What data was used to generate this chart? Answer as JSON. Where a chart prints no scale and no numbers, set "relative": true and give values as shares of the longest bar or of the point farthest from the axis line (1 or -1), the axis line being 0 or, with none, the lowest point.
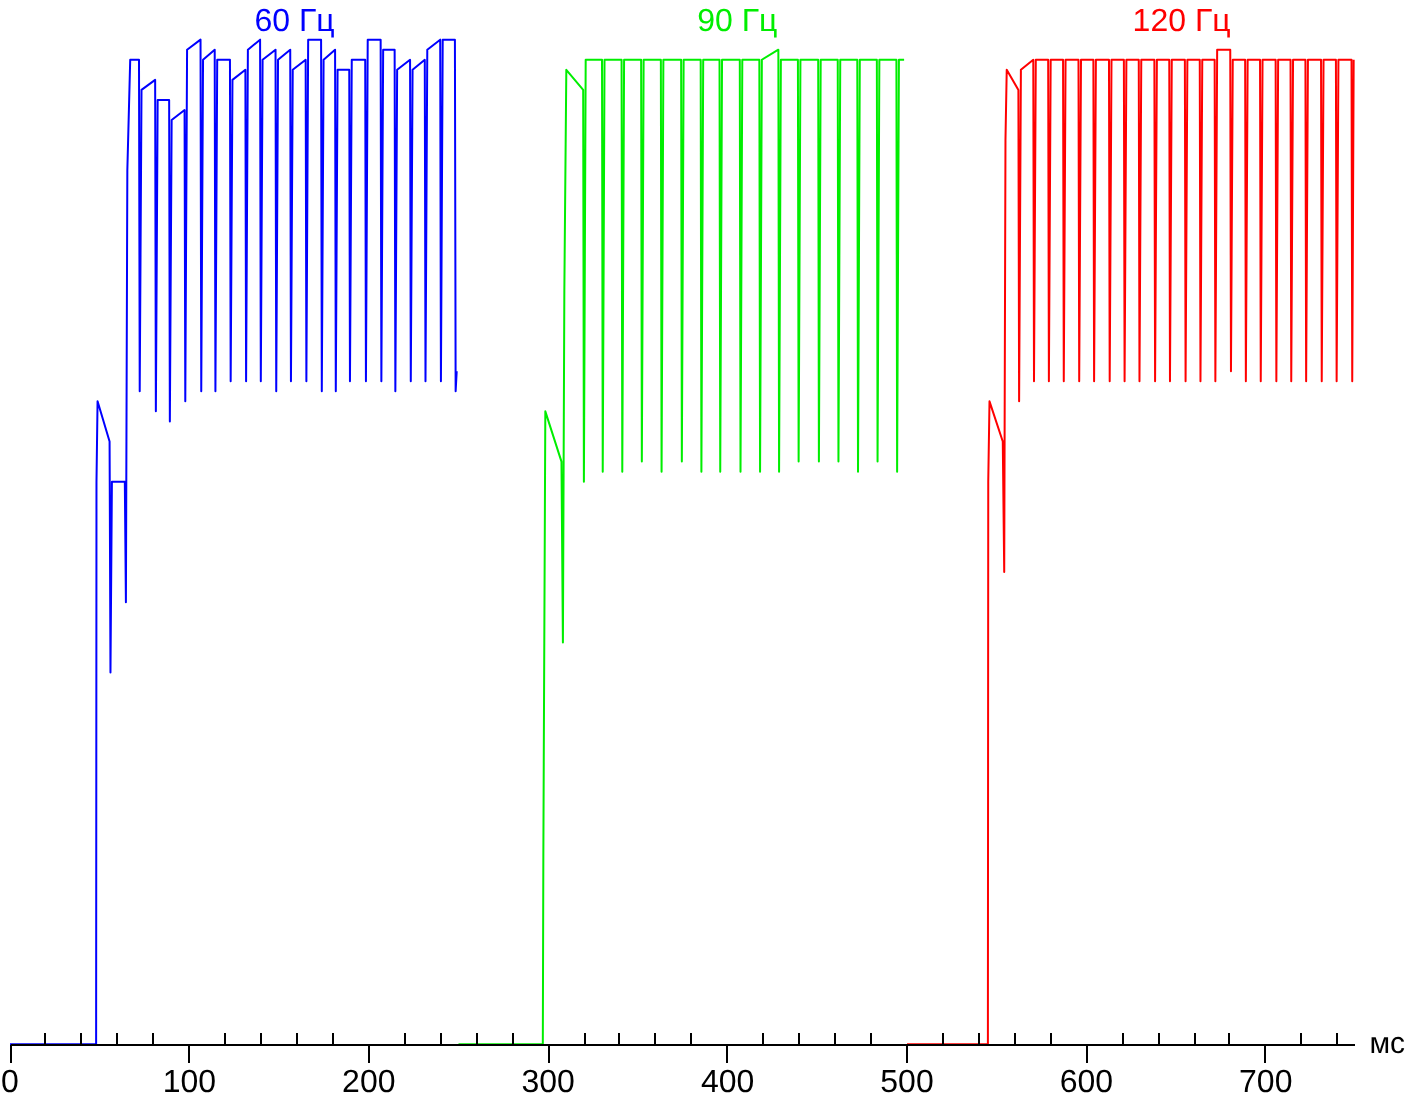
{
  "chart_data": {
    "type": "line",
    "relative": true,
    "xlabel": "мс",
    "xlim": [
      0,
      750
    ],
    "xticks": [
      0,
      {
        "value": 20,
        "label": null
      },
      {
        "value": 40,
        "label": null
      },
      {
        "value": 60,
        "label": null
      },
      {
        "value": 80,
        "label": null
      },
      100,
      {
        "value": 120,
        "label": null
      },
      {
        "value": 140,
        "label": null
      },
      {
        "value": 160,
        "label": null
      },
      {
        "value": 180,
        "label": null
      },
      200,
      {
        "value": 220,
        "label": null
      },
      {
        "value": 240,
        "label": null
      },
      {
        "value": 260,
        "label": null
      },
      {
        "value": 280,
        "label": null
      },
      300,
      {
        "value": 320,
        "label": null
      },
      {
        "value": 340,
        "label": null
      },
      {
        "value": 360,
        "label": null
      },
      {
        "value": 380,
        "label": null
      },
      400,
      {
        "value": 420,
        "label": null
      },
      {
        "value": 440,
        "label": null
      },
      {
        "value": 460,
        "label": null
      },
      {
        "value": 480,
        "label": null
      },
      500,
      {
        "value": 520,
        "label": null
      },
      {
        "value": 540,
        "label": null
      },
      {
        "value": 560,
        "label": null
      },
      {
        "value": 580,
        "label": null
      },
      600,
      {
        "value": 620,
        "label": null
      },
      {
        "value": 640,
        "label": null
      },
      {
        "value": 660,
        "label": null
      },
      {
        "value": 680,
        "label": null
      },
      700,
      {
        "value": 720,
        "label": null
      },
      {
        "value": 740,
        "label": null
      }
    ],
    "series": [
      {
        "name": "60 Гц",
        "color": "#0000ff",
        "x": [
          0,
          48,
          48.2,
          48.8,
          55.5,
          56,
          56.8,
          64,
          64.6,
          65.4,
          67,
          71.9,
          72.3,
          73.3,
          80.9,
          81.3,
          82.3,
          88.7,
          89.1,
          90.1,
          97.3,
          97.7,
          98.7,
          106.2,
          106.6,
          107.6,
          114.1,
          114.5,
          115.5,
          122.6,
          123,
          124,
          131.2,
          131.6,
          132.6,
          139.4,
          139.8,
          140.8,
          148,
          148.4,
          149.4,
          156.2,
          156.6,
          157.6,
          164.8,
          165.2,
          166.2,
          173.4,
          173.8,
          174.8,
          181.2,
          181.6,
          182.6,
          189.1,
          189.5,
          190.5,
          198,
          198.4,
          199.4,
          206.6,
          207,
          208,
          214.4,
          214.8,
          215.8,
          223,
          223.4,
          224.4,
          231.2,
          231.6,
          232.6,
          239.8,
          240.2,
          241.2,
          248,
          248.4,
          249
        ],
        "values": [
          0,
          0,
          0.56,
          0.64,
          0.6,
          0.37,
          0.56,
          0.56,
          0.44,
          0.87,
          0.98,
          0.98,
          0.65,
          0.95,
          0.96,
          0.63,
          0.94,
          0.94,
          0.62,
          0.92,
          0.93,
          0.64,
          0.99,
          1.0,
          0.65,
          0.98,
          0.99,
          0.65,
          0.98,
          0.98,
          0.66,
          0.96,
          0.97,
          0.66,
          0.99,
          1.0,
          0.66,
          0.98,
          0.99,
          0.65,
          0.98,
          0.99,
          0.66,
          0.97,
          0.98,
          0.66,
          1.0,
          1.0,
          0.65,
          0.98,
          0.99,
          0.65,
          0.97,
          0.97,
          0.66,
          0.98,
          0.98,
          0.66,
          1.0,
          1.0,
          0.66,
          0.99,
          0.99,
          0.65,
          0.97,
          0.98,
          0.66,
          0.97,
          0.98,
          0.66,
          0.99,
          1.0,
          0.66,
          1.0,
          1.0,
          0.65,
          0.67
        ]
      },
      {
        "name": "90 Гц",
        "color": "#00ee00",
        "x": [
          250,
          297,
          297.3,
          298.4,
          307.4,
          308.2,
          309,
          310.1,
          319.5,
          319.9,
          320.9,
          330,
          330.4,
          331.4,
          340.9,
          341.3,
          342.3,
          351.8,
          352.2,
          353.2,
          362.8,
          363.2,
          364.2,
          374.1,
          374.5,
          375.5,
          385,
          385.4,
          386.4,
          395.5,
          395.9,
          396.9,
          406.8,
          407.2,
          408.2,
          417.7,
          418.1,
          419.1,
          428.3,
          428.7,
          429.7,
          439.2,
          439.6,
          440.6,
          450.5,
          450.9,
          451.9,
          461.4,
          461.8,
          462.8,
          472.3,
          472.7,
          473.7,
          483.2,
          483.6,
          484.6,
          494.1,
          494.5,
          495.5,
          498.4
        ],
        "values": [
          0,
          0,
          0.19,
          0.63,
          0.58,
          0.4,
          0.75,
          0.97,
          0.95,
          0.56,
          0.98,
          0.98,
          0.57,
          0.98,
          0.98,
          0.57,
          0.98,
          0.98,
          0.58,
          0.98,
          0.98,
          0.57,
          0.98,
          0.98,
          0.58,
          0.98,
          0.98,
          0.57,
          0.98,
          0.98,
          0.57,
          0.98,
          0.98,
          0.57,
          0.98,
          0.98,
          0.57,
          0.98,
          0.99,
          0.57,
          0.98,
          0.98,
          0.58,
          0.98,
          0.98,
          0.58,
          0.98,
          0.98,
          0.58,
          0.98,
          0.98,
          0.57,
          0.98,
          0.98,
          0.58,
          0.98,
          0.98,
          0.57,
          0.98,
          0.98
        ]
      },
      {
        "name": "120 Гц",
        "color": "#ff0000",
        "x": [
          500,
          545.1,
          545.3,
          546,
          553.4,
          554.2,
          554.9,
          555.6,
          562.1,
          562.5,
          563.5,
          570.4,
          570.8,
          571.8,
          578.7,
          579.1,
          580.1,
          587,
          587.4,
          588.4,
          595.6,
          596,
          597,
          603.9,
          604.3,
          605.3,
          612.6,
          613,
          614,
          620.9,
          621.3,
          622.3,
          629.2,
          629.6,
          630.6,
          637.9,
          638.3,
          639.3,
          646.2,
          646.6,
          647.6,
          654.9,
          655.3,
          656.3,
          663.2,
          663.6,
          664.6,
          671.5,
          671.9,
          672.9,
          680.2,
          680.6,
          681.6,
          688.5,
          688.9,
          689.9,
          696.8,
          697.2,
          698.2,
          705.5,
          705.9,
          706.9,
          713.8,
          714.2,
          715.2,
          722.1,
          722.5,
          723.5,
          730.8,
          731.2,
          732.2,
          739.1,
          739.5,
          740.5,
          747.8,
          748.2,
          749
        ],
        "values": [
          0,
          0,
          0.56,
          0.64,
          0.6,
          0.47,
          0.9,
          0.97,
          0.95,
          0.64,
          0.97,
          0.98,
          0.66,
          0.98,
          0.98,
          0.66,
          0.98,
          0.98,
          0.66,
          0.98,
          0.98,
          0.66,
          0.98,
          0.98,
          0.66,
          0.98,
          0.98,
          0.66,
          0.98,
          0.98,
          0.66,
          0.98,
          0.98,
          0.66,
          0.98,
          0.98,
          0.66,
          0.98,
          0.98,
          0.66,
          0.98,
          0.98,
          0.66,
          0.98,
          0.98,
          0.66,
          0.98,
          0.98,
          0.66,
          0.99,
          0.99,
          0.67,
          0.98,
          0.98,
          0.66,
          0.98,
          0.98,
          0.66,
          0.98,
          0.98,
          0.66,
          0.98,
          0.98,
          0.66,
          0.98,
          0.98,
          0.66,
          0.98,
          0.98,
          0.66,
          0.98,
          0.98,
          0.66,
          0.98,
          0.98,
          0.66,
          0.98
        ]
      }
    ]
  }
}
